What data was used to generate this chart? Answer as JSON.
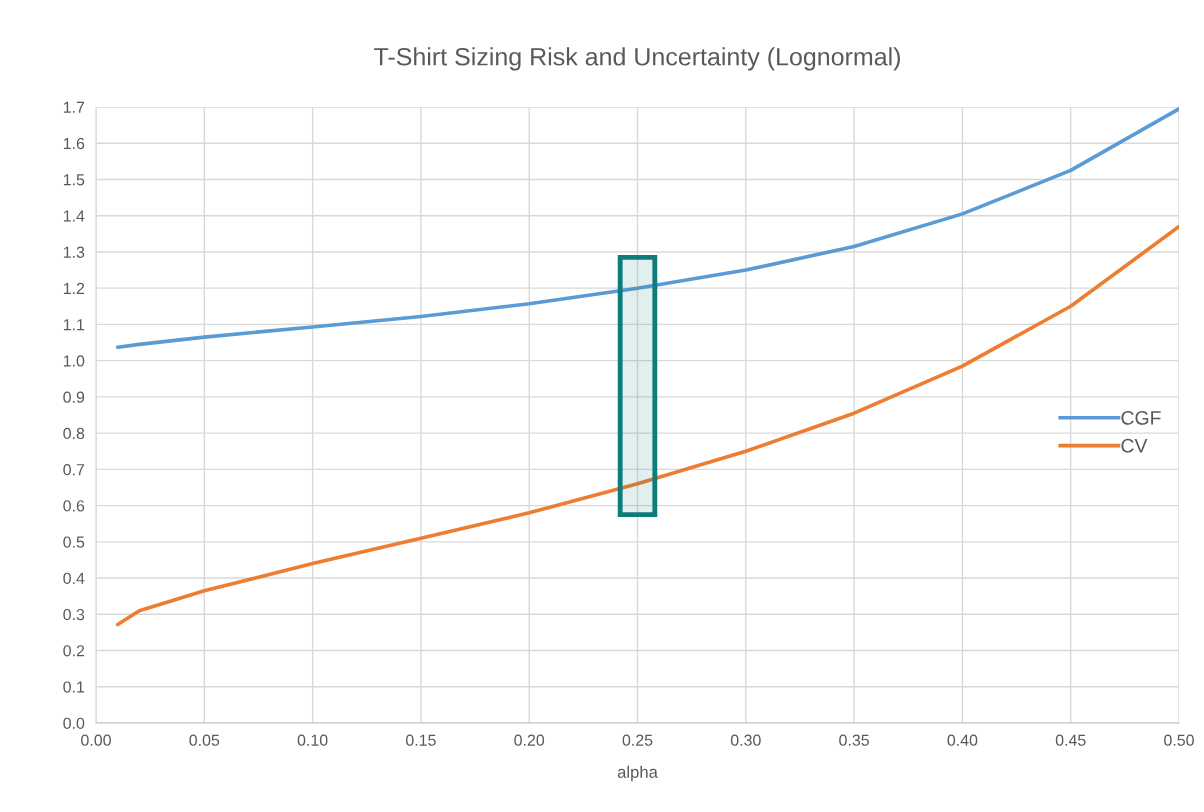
{
  "chart_data": {
    "type": "line",
    "title": "T-Shirt Sizing Risk and Uncertainty (Lognormal)",
    "xlabel": "alpha",
    "x": [
      0.01,
      0.02,
      0.05,
      0.1,
      0.15,
      0.2,
      0.25,
      0.3,
      0.35,
      0.4,
      0.45,
      0.5
    ],
    "series": [
      {
        "name": "CGF",
        "color": "#5b9bd5",
        "values": [
          1.037,
          1.045,
          1.065,
          1.093,
          1.122,
          1.157,
          1.2,
          1.25,
          1.315,
          1.405,
          1.525,
          1.695
        ]
      },
      {
        "name": "CV",
        "color": "#ed7d31",
        "values": [
          0.272,
          0.31,
          0.365,
          0.44,
          0.51,
          0.58,
          0.66,
          0.75,
          0.855,
          0.985,
          1.15,
          1.37
        ]
      }
    ],
    "bands": [
      {
        "axis": "x",
        "from": 0.242,
        "to": 0.258,
        "color": "#0e7c7b"
      }
    ],
    "xlim": [
      0,
      0.5
    ],
    "xticks": [
      {
        "value": 0,
        "label": "0.00"
      },
      {
        "value": 0.05,
        "label": "0.05"
      },
      {
        "value": 0.1,
        "label": "0.10"
      },
      {
        "value": 0.15,
        "label": "0.15"
      },
      {
        "value": 0.2,
        "label": "0.20"
      },
      {
        "value": 0.25,
        "label": "0.25"
      },
      {
        "value": 0.3,
        "label": "0.30"
      },
      {
        "value": 0.35,
        "label": "0.35"
      },
      {
        "value": 0.4,
        "label": "0.40"
      },
      {
        "value": 0.45,
        "label": "0.45"
      },
      {
        "value": 0.5,
        "label": "0.50"
      }
    ],
    "ylim": [
      0,
      1.7
    ],
    "yticks": [
      {
        "value": 0,
        "label": "0.0"
      },
      {
        "value": 0.1,
        "label": "0.1"
      },
      {
        "value": 0.2,
        "label": "0.2"
      },
      {
        "value": 0.3,
        "label": "0.3"
      },
      {
        "value": 0.4,
        "label": "0.4"
      },
      {
        "value": 0.5,
        "label": "0.5"
      },
      {
        "value": 0.6,
        "label": "0.6"
      },
      {
        "value": 0.7,
        "label": "0.7"
      },
      {
        "value": 0.8,
        "label": "0.8"
      },
      {
        "value": 0.9,
        "label": "0.9"
      },
      {
        "value": 1.0,
        "label": "1.0"
      },
      {
        "value": 1.1,
        "label": "1.1"
      },
      {
        "value": 1.2,
        "label": "1.2"
      },
      {
        "value": 1.3,
        "label": "1.3"
      },
      {
        "value": 1.4,
        "label": "1.4"
      },
      {
        "value": 1.5,
        "label": "1.5"
      },
      {
        "value": 1.6,
        "label": "1.6"
      },
      {
        "value": 1.7,
        "label": "1.7"
      }
    ],
    "grid": true,
    "legend": "right",
    "marker": "none",
    "line_style": "solid"
  }
}
